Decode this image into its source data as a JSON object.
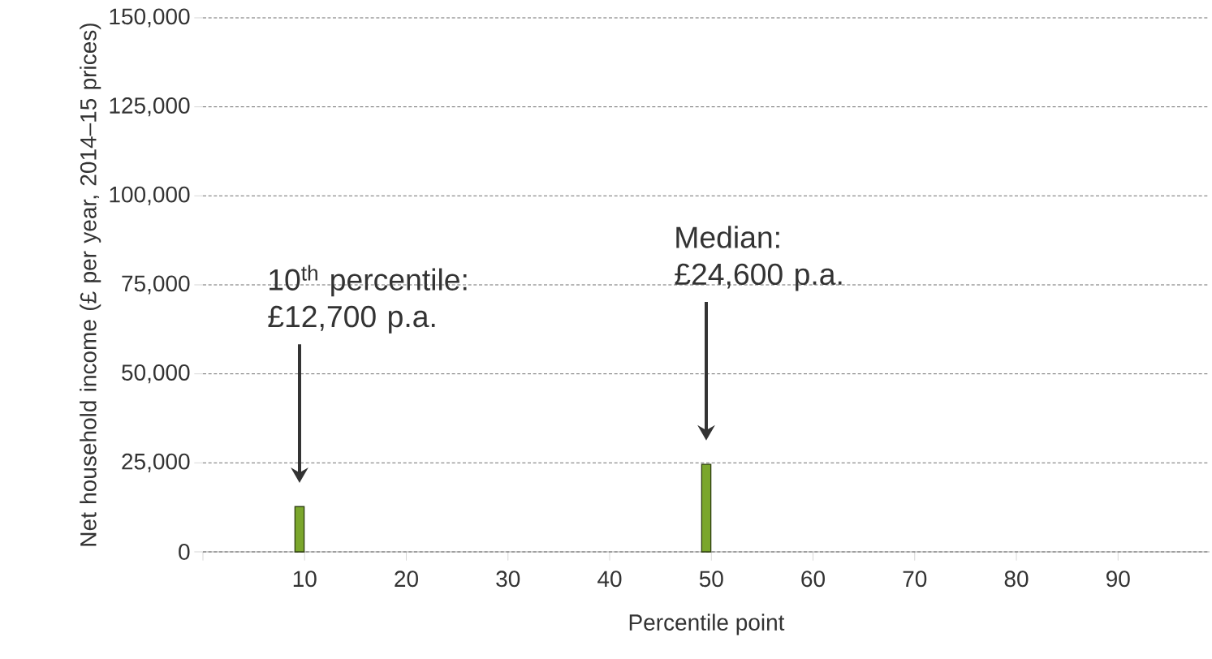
{
  "chart_data": {
    "type": "bar",
    "xlabel": "Percentile point",
    "ylabel": "Net household income (£ per year, 2014–15 prices)",
    "x": [
      10,
      50
    ],
    "values": [
      12700,
      24600
    ],
    "color": "#7aa62c",
    "xlim": [
      0.5,
      99.5
    ],
    "xticks": [
      {
        "value": 0.5,
        "label": null
      },
      {
        "value": 10.5,
        "label": "10"
      },
      {
        "value": 20.5,
        "label": "20"
      },
      {
        "value": 30.5,
        "label": "30"
      },
      {
        "value": 40.5,
        "label": "40"
      },
      {
        "value": 50.5,
        "label": "50"
      },
      {
        "value": 60.5,
        "label": "60"
      },
      {
        "value": 70.5,
        "label": "70"
      },
      {
        "value": 80.5,
        "label": "80"
      },
      {
        "value": 90.5,
        "label": "90"
      }
    ],
    "ylim": [
      0,
      150000
    ],
    "yticks": [
      {
        "value": 0,
        "label": "0"
      },
      {
        "value": 25000,
        "label": "25,000"
      },
      {
        "value": 50000,
        "label": "50,000"
      },
      {
        "value": 75000,
        "label": "75,000"
      },
      {
        "value": 100000,
        "label": "100,000"
      },
      {
        "value": 125000,
        "label": "125,000"
      },
      {
        "value": 150000,
        "label": "150,000"
      }
    ],
    "grid": "y",
    "annotations": [
      "10$^{th}$ percentile: £12,700 p.a.",
      "Median: £24,600 p.a."
    ]
  }
}
